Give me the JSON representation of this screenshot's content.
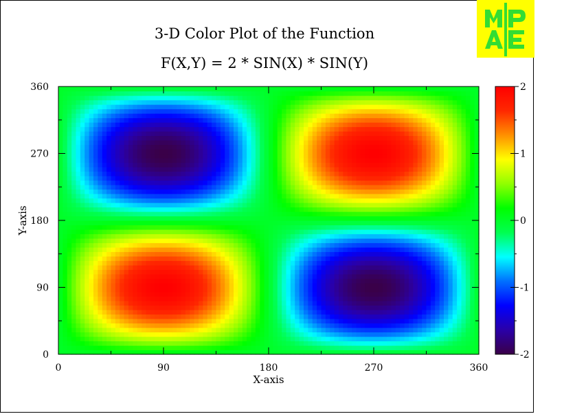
{
  "chart_data": {
    "type": "heatmap",
    "title": "3-D Color Plot of the Function",
    "subtitle": "F(X,Y) = 2 * SIN(X) * SIN(Y)",
    "xlabel": "X-axis",
    "ylabel": "Y-axis",
    "xlim": [
      0,
      360
    ],
    "ylim": [
      0,
      360
    ],
    "x_ticks": [
      "0",
      "90",
      "180",
      "270",
      "360"
    ],
    "y_ticks": [
      "0",
      "90",
      "180",
      "270",
      "360"
    ],
    "x_tick_values": [
      0,
      90,
      180,
      270,
      360
    ],
    "y_tick_values": [
      0,
      90,
      180,
      270,
      360
    ],
    "z_range": [
      -2,
      2
    ],
    "colorbar_ticks": [
      "-2",
      "-1",
      "0",
      "1",
      "2"
    ],
    "colorbar_tick_values": [
      -2,
      -1,
      0,
      1,
      2
    ],
    "colormap": [
      "#3a0048",
      "#2a00a8",
      "#0000ff",
      "#0070ff",
      "#00ffff",
      "#00ff50",
      "#00ff00",
      "#90ff00",
      "#ffff00",
      "#ff9000",
      "#ff2800",
      "#ff0000"
    ],
    "grid": false,
    "legend": "colorbar-right"
  },
  "logo": {
    "text": "MPAE",
    "background": "#ffff00",
    "foreground": "#33dd33"
  }
}
